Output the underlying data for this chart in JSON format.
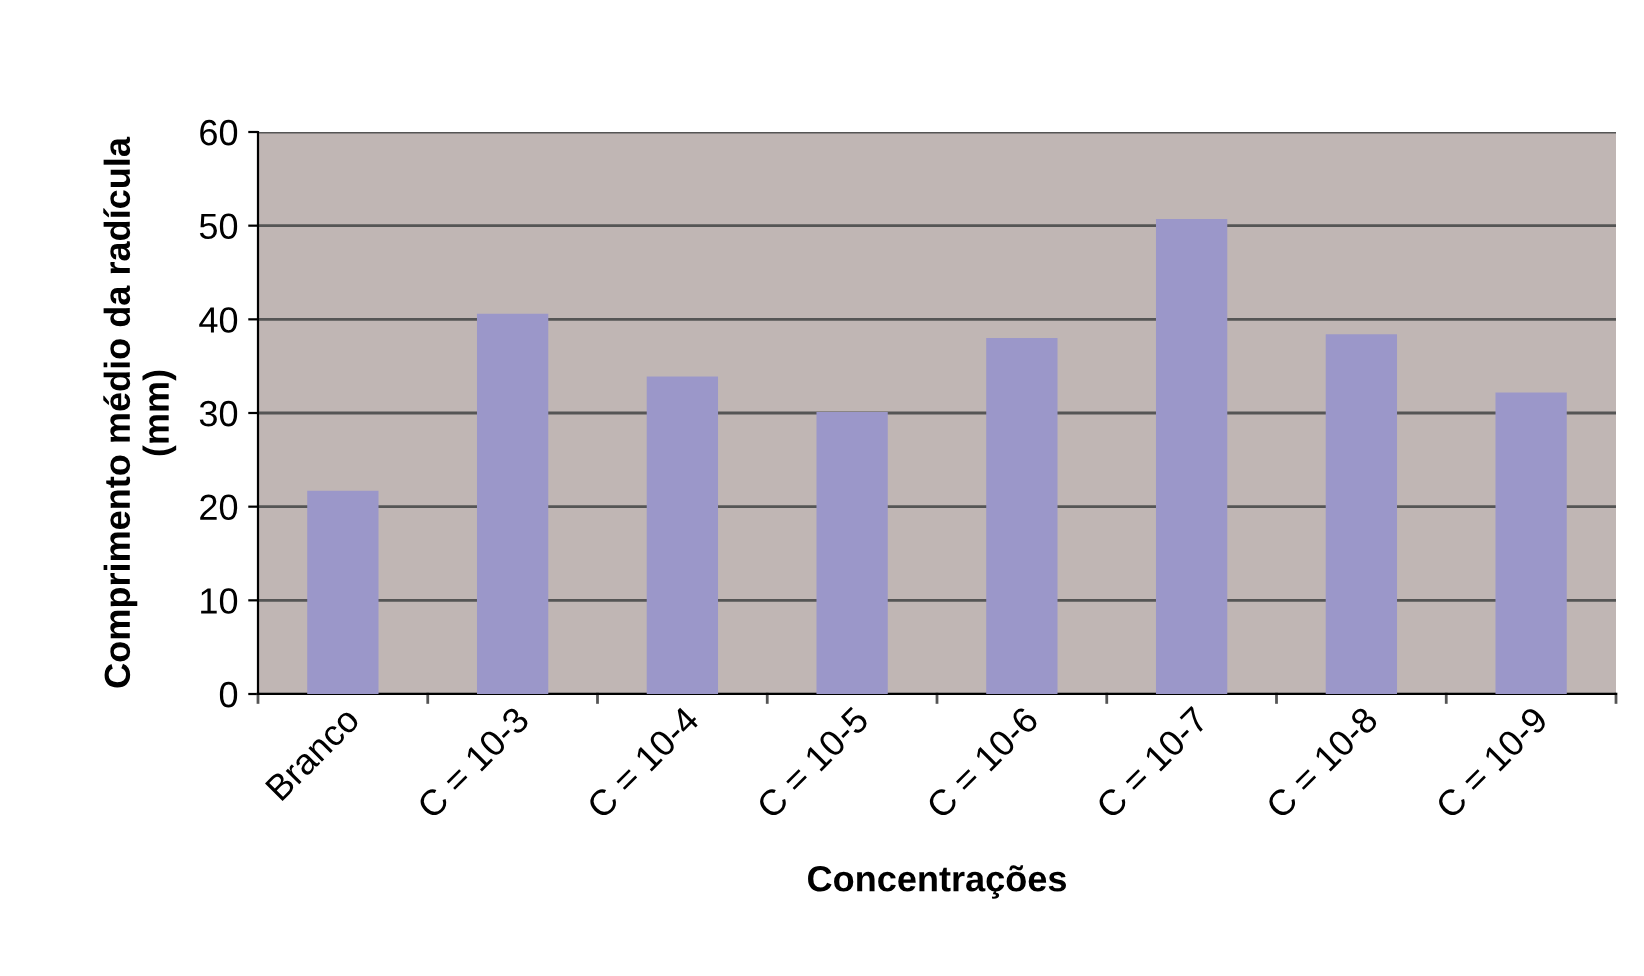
{
  "chart_data": {
    "type": "bar",
    "xlabel": "Concentrações",
    "ylabel": "Comprimento médio da radícula\n(mm)",
    "categories": [
      "Branco",
      "C = 10-3",
      "C = 10-4",
      "C = 10-5",
      "C = 10-6",
      "C = 10-7",
      "C = 10-8",
      "C = 10-9"
    ],
    "values": [
      21.7,
      40.6,
      33.9,
      30.1,
      38.0,
      50.7,
      38.4,
      32.2
    ],
    "color": "#9b97c9",
    "ylim": [
      0,
      60
    ],
    "yticks": [
      0,
      10,
      20,
      30,
      40,
      50,
      60
    ],
    "grid": "y"
  }
}
